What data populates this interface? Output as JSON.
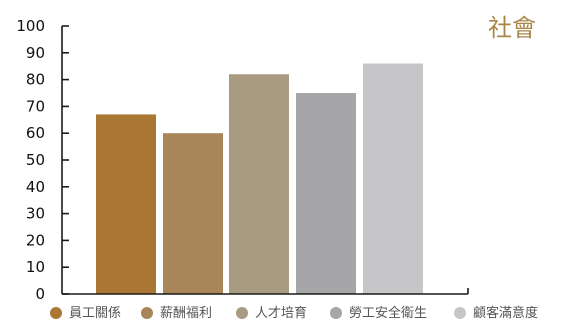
{
  "chart_data": {
    "type": "bar",
    "title": "社會",
    "categories": [
      "員工關係",
      "薪酬福利",
      "人才培育",
      "勞工安全衛生",
      "顧客滿意度"
    ],
    "values": [
      67,
      60,
      82,
      75,
      86
    ],
    "colors": [
      "#a97634",
      "#a98659",
      "#a99a82",
      "#a6a6a8",
      "#c6c6c8"
    ],
    "title_color": "#a98549",
    "ylim": [
      0,
      100
    ],
    "yticks": [
      0,
      10,
      20,
      30,
      40,
      50,
      60,
      70,
      80,
      90,
      100
    ],
    "xlabel": "",
    "ylabel": "",
    "grid": false,
    "legend_position": "bottom"
  }
}
